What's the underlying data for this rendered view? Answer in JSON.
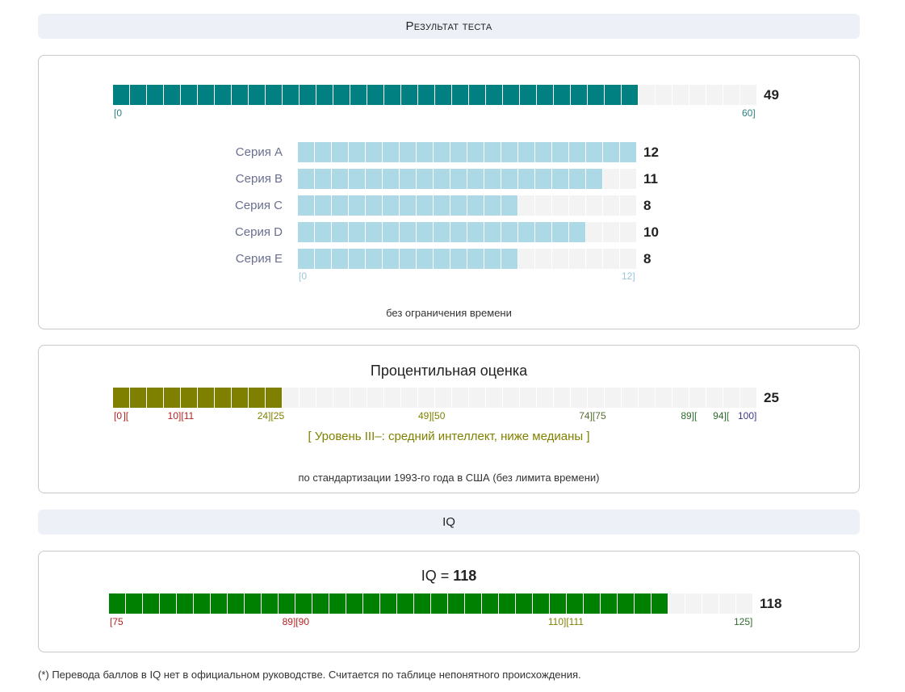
{
  "result_header": "Результат теста",
  "total": {
    "value": "49",
    "score": 49,
    "max": 60,
    "segments": 38,
    "tick_min": "[0",
    "tick_max": "60]",
    "fill_color": "#008080"
  },
  "series": {
    "max": 12,
    "fill_color": "#add8e6",
    "tick_min": "[0",
    "tick_max": "12]",
    "items": [
      {
        "label": "Серия A",
        "value": "12",
        "score": 12
      },
      {
        "label": "Серия B",
        "value": "11",
        "score": 11
      },
      {
        "label": "Серия C",
        "value": "8",
        "score": 8
      },
      {
        "label": "Серия D",
        "value": "10",
        "score": 10
      },
      {
        "label": "Серия E",
        "value": "8",
        "score": 8
      }
    ]
  },
  "time_note": "без ограничения времени",
  "percentile": {
    "title": "Процентильная оценка",
    "value": "25",
    "score": 25,
    "max": 100,
    "fill_color": "#808000",
    "ticks": [
      {
        "text": "[0",
        "at": 0,
        "color": "#b22222"
      },
      {
        "text": "][",
        "at": 2,
        "color": "#b22222"
      },
      {
        "text": "10][11",
        "at": 10.5,
        "color": "#b22222"
      },
      {
        "text": "24][25",
        "at": 24.5,
        "color": "#808000"
      },
      {
        "text": "49][50",
        "at": 49.5,
        "color": "#808000"
      },
      {
        "text": "74][75",
        "at": 74.5,
        "color": "#556b2f"
      },
      {
        "text": "89][",
        "at": 89.5,
        "color": "#2e6b2e"
      },
      {
        "text": "94][",
        "at": 94.5,
        "color": "#2e6b2e"
      },
      {
        "text": "100]",
        "at": 100,
        "color": "#3a3a8c"
      }
    ],
    "level_text": "[ Уровень III–: средний интеллект, ниже медианы ]",
    "note": "по стандартизации 1993-го года в США (без лимита времени)"
  },
  "iq_header": "IQ",
  "iq": {
    "title_prefix": "IQ = ",
    "title_value": "118",
    "value": "118",
    "score": 118,
    "min": 75,
    "max": 125,
    "fill_color": "#008000",
    "ticks": [
      {
        "text": "[75",
        "at": 75,
        "color": "#b22222"
      },
      {
        "text": "89][90",
        "at": 89.5,
        "color": "#b22222"
      },
      {
        "text": "110][111",
        "at": 110.5,
        "color": "#808000"
      },
      {
        "text": "125]",
        "at": 125,
        "color": "#2e6b2e"
      }
    ]
  },
  "footnote": "(*) Перевода баллов в IQ нет в официальном руководстве. Считается по таблице непонятного происхождения."
}
